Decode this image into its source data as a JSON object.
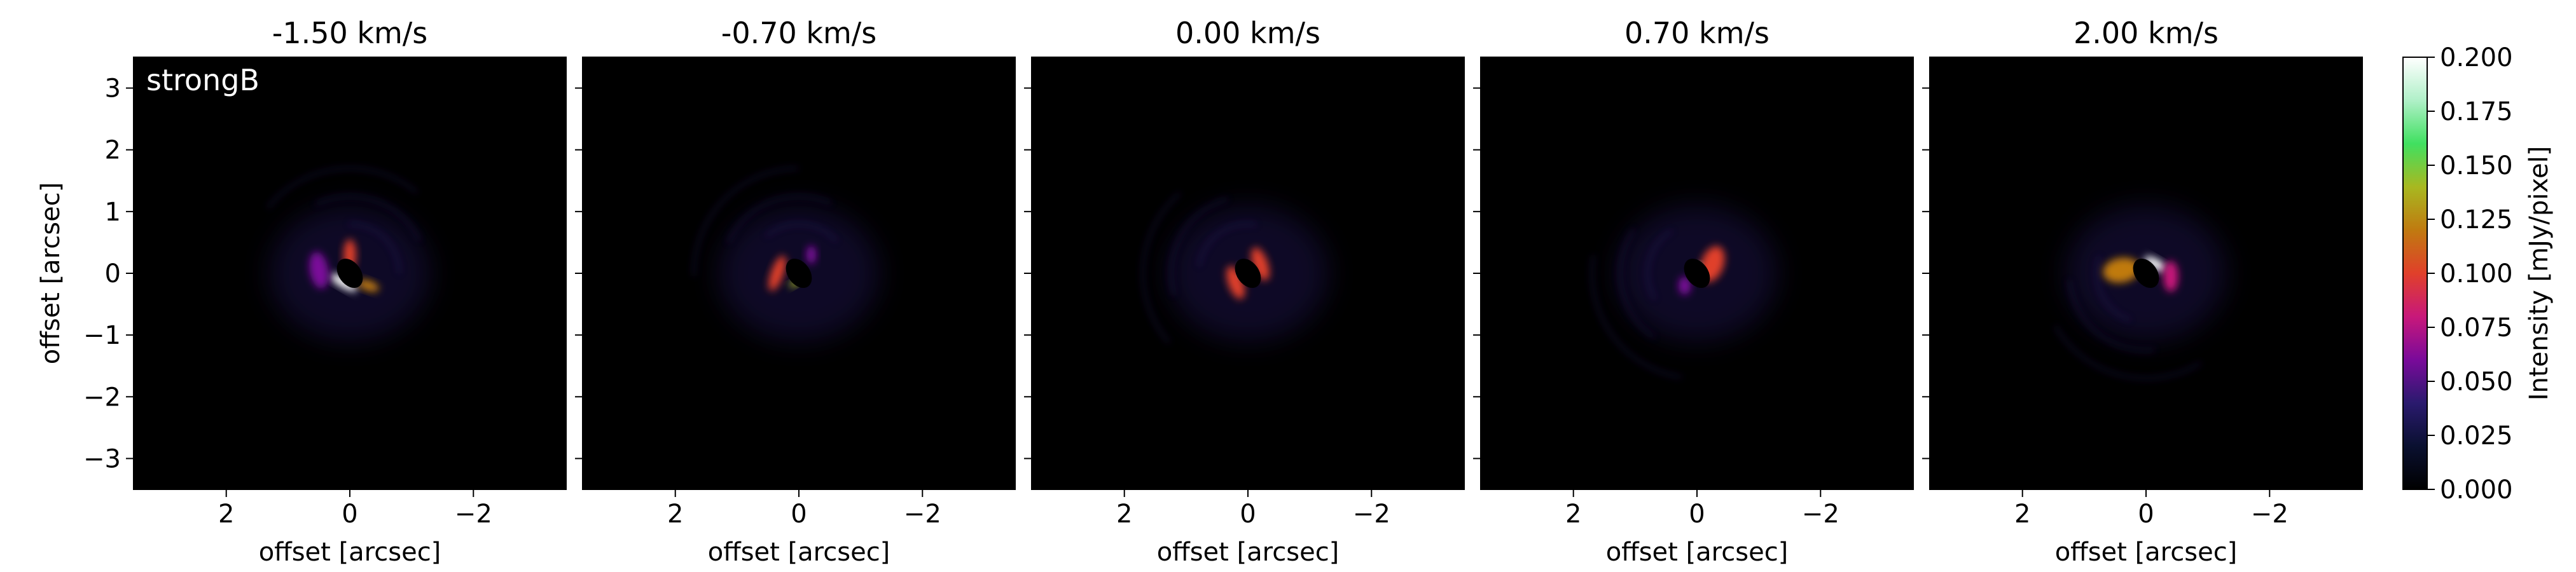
{
  "chart_data": {
    "type": "heatmap",
    "panel_titles": [
      "-1.50 km/s",
      "-0.70 km/s",
      "0.00 km/s",
      "0.70 km/s",
      "2.00 km/s"
    ],
    "annotation": "strongB",
    "xlabel": "offset [arcsec]",
    "ylabel": "offset [arcsec]",
    "xlim": [
      3.5,
      -3.5
    ],
    "ylim": [
      -3.5,
      3.5
    ],
    "x_ticks": [
      2,
      0,
      -2
    ],
    "x_tick_labels": [
      "2",
      "0",
      "−2"
    ],
    "y_ticks": [
      3,
      2,
      1,
      0,
      -1,
      -2,
      -3
    ],
    "y_tick_labels": [
      "3",
      "2",
      "1",
      "0",
      "−1",
      "−2",
      "−3"
    ],
    "colorbar": {
      "label": "Intensity [mJy/pixel]",
      "range": [
        0.0,
        0.2
      ],
      "ticks": [
        0.0,
        0.025,
        0.05,
        0.075,
        0.1,
        0.125,
        0.15,
        0.175,
        0.2
      ],
      "tick_labels": [
        "0.000",
        "0.025",
        "0.050",
        "0.075",
        "0.100",
        "0.125",
        "0.150",
        "0.175",
        "0.200"
      ],
      "colormap": [
        "#000000",
        "#0a1030",
        "#2a1a6e",
        "#7a0a9a",
        "#c8187a",
        "#e0402a",
        "#c07a10",
        "#a8b820",
        "#40e060",
        "#b0f0c8",
        "#ffffff"
      ]
    },
    "series": [
      {
        "velocity": -1.5,
        "blobs": [
          {
            "x": 0.1,
            "y": -0.15,
            "rx": 0.25,
            "ry": 0.08,
            "angle": -30,
            "level": 1.0
          },
          {
            "x": 0.0,
            "y": 0.3,
            "rx": 0.1,
            "ry": 0.25,
            "angle": 0,
            "level": 0.45
          },
          {
            "x": 0.5,
            "y": 0.05,
            "rx": 0.15,
            "ry": 0.3,
            "angle": 10,
            "level": 0.3
          },
          {
            "x": -0.3,
            "y": -0.2,
            "rx": 0.18,
            "ry": 0.08,
            "angle": -20,
            "level": 0.6
          }
        ]
      },
      {
        "velocity": -0.7,
        "blobs": [
          {
            "x": 0.35,
            "y": 0.0,
            "rx": 0.1,
            "ry": 0.3,
            "angle": -20,
            "level": 0.45
          },
          {
            "x": 0.05,
            "y": -0.15,
            "rx": 0.12,
            "ry": 0.05,
            "angle": 30,
            "level": 0.7
          },
          {
            "x": -0.2,
            "y": 0.3,
            "rx": 0.08,
            "ry": 0.15,
            "angle": 0,
            "level": 0.3
          }
        ]
      },
      {
        "velocity": 0.0,
        "blobs": [
          {
            "x": -0.2,
            "y": 0.15,
            "rx": 0.12,
            "ry": 0.28,
            "angle": 20,
            "level": 0.5
          },
          {
            "x": 0.2,
            "y": -0.15,
            "rx": 0.12,
            "ry": 0.28,
            "angle": 20,
            "level": 0.5
          },
          {
            "x": 0.1,
            "y": 0.05,
            "rx": 0.05,
            "ry": 0.08,
            "angle": 0,
            "level": 0.85
          }
        ]
      },
      {
        "velocity": 0.7,
        "blobs": [
          {
            "x": -0.25,
            "y": 0.15,
            "rx": 0.18,
            "ry": 0.3,
            "angle": -20,
            "level": 0.5
          },
          {
            "x": 0.0,
            "y": 0.1,
            "rx": 0.06,
            "ry": 0.06,
            "angle": 0,
            "level": 0.9
          },
          {
            "x": 0.2,
            "y": -0.2,
            "rx": 0.1,
            "ry": 0.15,
            "angle": 0,
            "level": 0.3
          }
        ]
      },
      {
        "velocity": 2.0,
        "blobs": [
          {
            "x": -0.15,
            "y": 0.15,
            "rx": 0.2,
            "ry": 0.08,
            "angle": -30,
            "level": 1.0
          },
          {
            "x": 0.4,
            "y": 0.05,
            "rx": 0.3,
            "ry": 0.2,
            "angle": 10,
            "level": 0.55
          },
          {
            "x": -0.4,
            "y": -0.05,
            "rx": 0.12,
            "ry": 0.25,
            "angle": 0,
            "level": 0.35
          }
        ]
      }
    ]
  }
}
